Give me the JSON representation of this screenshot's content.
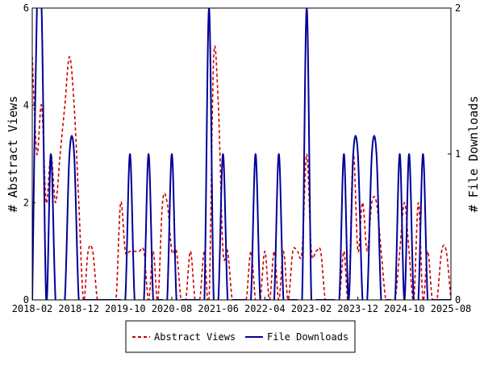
{
  "chart_data": {
    "type": "line",
    "title": "",
    "ylabel_left": "# Abstract Views",
    "ylabel_right": "# File Downloads",
    "ylim_left": [
      0,
      6
    ],
    "ylim_right": [
      0,
      2
    ],
    "yticks_left": [
      "0",
      "2",
      "4",
      "6"
    ],
    "yticks_right": [
      "0",
      "1",
      "2"
    ],
    "x_start": "2018-02",
    "x_end": "2025-08",
    "xtick_labels": [
      "2018-02",
      "2018-12",
      "2019-10",
      "2020-08",
      "2021-06",
      "2022-04",
      "2023-02",
      "2023-12",
      "2024-10",
      "2025-08"
    ],
    "grid": false,
    "legend_position": "bottom-center",
    "series": [
      {
        "name": "Abstract Views",
        "axis": "left",
        "color": "#cc0000",
        "style": "dashed",
        "points": [
          [
            "2018-02",
            5
          ],
          [
            "2018-03",
            3
          ],
          [
            "2018-04",
            4
          ],
          [
            "2018-05",
            2
          ],
          [
            "2018-06",
            3
          ],
          [
            "2018-07",
            2
          ],
          [
            "2018-08",
            3
          ],
          [
            "2018-09",
            4
          ],
          [
            "2018-10",
            5
          ],
          [
            "2018-11",
            4
          ],
          [
            "2018-12",
            2
          ],
          [
            "2019-01",
            0
          ],
          [
            "2019-02",
            1
          ],
          [
            "2019-03",
            1
          ],
          [
            "2019-04",
            0
          ],
          [
            "2019-05",
            0
          ],
          [
            "2019-06",
            0
          ],
          [
            "2019-07",
            0
          ],
          [
            "2019-08",
            0
          ],
          [
            "2019-09",
            2
          ],
          [
            "2019-10",
            1
          ],
          [
            "2019-11",
            1
          ],
          [
            "2019-12",
            1
          ],
          [
            "2020-01",
            1
          ],
          [
            "2020-02",
            1
          ],
          [
            "2020-03",
            0
          ],
          [
            "2020-04",
            1
          ],
          [
            "2020-05",
            0
          ],
          [
            "2020-06",
            2
          ],
          [
            "2020-07",
            2
          ],
          [
            "2020-08",
            1
          ],
          [
            "2020-09",
            1
          ],
          [
            "2020-10",
            0
          ],
          [
            "2020-11",
            0
          ],
          [
            "2020-12",
            1
          ],
          [
            "2021-01",
            0
          ],
          [
            "2021-02",
            0
          ],
          [
            "2021-03",
            1
          ],
          [
            "2021-04",
            0
          ],
          [
            "2021-05",
            5
          ],
          [
            "2021-06",
            4
          ],
          [
            "2021-07",
            1
          ],
          [
            "2021-08",
            1
          ],
          [
            "2021-09",
            0
          ],
          [
            "2021-10",
            0
          ],
          [
            "2021-11",
            0
          ],
          [
            "2021-12",
            0
          ],
          [
            "2022-01",
            1
          ],
          [
            "2022-02",
            0
          ],
          [
            "2022-03",
            0
          ],
          [
            "2022-04",
            1
          ],
          [
            "2022-05",
            0
          ],
          [
            "2022-06",
            1
          ],
          [
            "2022-07",
            0
          ],
          [
            "2022-08",
            1
          ],
          [
            "2022-09",
            0
          ],
          [
            "2022-10",
            1
          ],
          [
            "2022-11",
            1
          ],
          [
            "2022-12",
            1
          ],
          [
            "2023-01",
            3
          ],
          [
            "2023-02",
            1
          ],
          [
            "2023-03",
            1
          ],
          [
            "2023-04",
            1
          ],
          [
            "2023-05",
            0
          ],
          [
            "2023-06",
            0
          ],
          [
            "2023-07",
            0
          ],
          [
            "2023-08",
            0
          ],
          [
            "2023-09",
            1
          ],
          [
            "2023-10",
            0
          ],
          [
            "2023-11",
            3
          ],
          [
            "2023-12",
            1
          ],
          [
            "2024-01",
            2
          ],
          [
            "2024-02",
            1
          ],
          [
            "2024-03",
            2
          ],
          [
            "2024-04",
            2
          ],
          [
            "2024-05",
            1
          ],
          [
            "2024-06",
            0
          ],
          [
            "2024-07",
            0
          ],
          [
            "2024-08",
            0
          ],
          [
            "2024-09",
            1
          ],
          [
            "2024-10",
            2
          ],
          [
            "2024-11",
            1
          ],
          [
            "2024-12",
            0
          ],
          [
            "2025-01",
            2
          ],
          [
            "2025-02",
            0
          ],
          [
            "2025-03",
            1
          ],
          [
            "2025-04",
            0
          ],
          [
            "2025-05",
            0
          ],
          [
            "2025-06",
            1
          ],
          [
            "2025-07",
            1
          ],
          [
            "2025-08",
            0
          ]
        ]
      },
      {
        "name": "File Downloads",
        "axis": "right",
        "color": "#000099",
        "style": "solid",
        "points": [
          [
            "2018-02",
            0
          ],
          [
            "2018-03",
            2
          ],
          [
            "2018-04",
            2
          ],
          [
            "2018-05",
            0
          ],
          [
            "2018-06",
            1
          ],
          [
            "2018-07",
            0
          ],
          [
            "2018-08",
            0
          ],
          [
            "2018-09",
            0
          ],
          [
            "2018-10",
            1
          ],
          [
            "2018-11",
            1
          ],
          [
            "2018-12",
            0
          ],
          [
            "2019-01",
            0
          ],
          [
            "2019-02",
            0
          ],
          [
            "2019-03",
            0
          ],
          [
            "2019-04",
            0
          ],
          [
            "2019-05",
            0
          ],
          [
            "2019-06",
            0
          ],
          [
            "2019-07",
            0
          ],
          [
            "2019-08",
            0
          ],
          [
            "2019-09",
            0
          ],
          [
            "2019-10",
            0
          ],
          [
            "2019-11",
            1
          ],
          [
            "2019-12",
            0
          ],
          [
            "2020-01",
            0
          ],
          [
            "2020-02",
            0
          ],
          [
            "2020-03",
            1
          ],
          [
            "2020-04",
            0
          ],
          [
            "2020-05",
            0
          ],
          [
            "2020-06",
            0
          ],
          [
            "2020-07",
            0
          ],
          [
            "2020-08",
            1
          ],
          [
            "2020-09",
            0
          ],
          [
            "2020-10",
            0
          ],
          [
            "2020-11",
            0
          ],
          [
            "2020-12",
            0
          ],
          [
            "2021-01",
            0
          ],
          [
            "2021-02",
            0
          ],
          [
            "2021-03",
            0
          ],
          [
            "2021-04",
            2
          ],
          [
            "2021-05",
            0
          ],
          [
            "2021-06",
            0
          ],
          [
            "2021-07",
            1
          ],
          [
            "2021-08",
            0
          ],
          [
            "2021-09",
            0
          ],
          [
            "2021-10",
            0
          ],
          [
            "2021-11",
            0
          ],
          [
            "2021-12",
            0
          ],
          [
            "2022-01",
            0
          ],
          [
            "2022-02",
            1
          ],
          [
            "2022-03",
            0
          ],
          [
            "2022-04",
            0
          ],
          [
            "2022-05",
            0
          ],
          [
            "2022-06",
            0
          ],
          [
            "2022-07",
            1
          ],
          [
            "2022-08",
            0
          ],
          [
            "2022-09",
            0
          ],
          [
            "2022-10",
            0
          ],
          [
            "2022-11",
            0
          ],
          [
            "2022-12",
            0
          ],
          [
            "2023-01",
            2
          ],
          [
            "2023-02",
            0
          ],
          [
            "2023-03",
            0
          ],
          [
            "2023-04",
            0
          ],
          [
            "2023-05",
            0
          ],
          [
            "2023-06",
            0
          ],
          [
            "2023-07",
            0
          ],
          [
            "2023-08",
            0
          ],
          [
            "2023-09",
            1
          ],
          [
            "2023-10",
            0
          ],
          [
            "2023-11",
            1
          ],
          [
            "2023-12",
            1
          ],
          [
            "2024-01",
            0
          ],
          [
            "2024-02",
            0
          ],
          [
            "2024-03",
            1
          ],
          [
            "2024-04",
            1
          ],
          [
            "2024-05",
            0
          ],
          [
            "2024-06",
            0
          ],
          [
            "2024-07",
            0
          ],
          [
            "2024-08",
            0
          ],
          [
            "2024-09",
            1
          ],
          [
            "2024-10",
            0
          ],
          [
            "2024-11",
            1
          ],
          [
            "2024-12",
            0
          ],
          [
            "2025-01",
            0
          ],
          [
            "2025-02",
            1
          ],
          [
            "2025-03",
            0
          ],
          [
            "2025-04",
            0
          ],
          [
            "2025-05",
            0
          ],
          [
            "2025-06",
            0
          ],
          [
            "2025-07",
            0
          ],
          [
            "2025-08",
            0
          ]
        ]
      }
    ]
  }
}
